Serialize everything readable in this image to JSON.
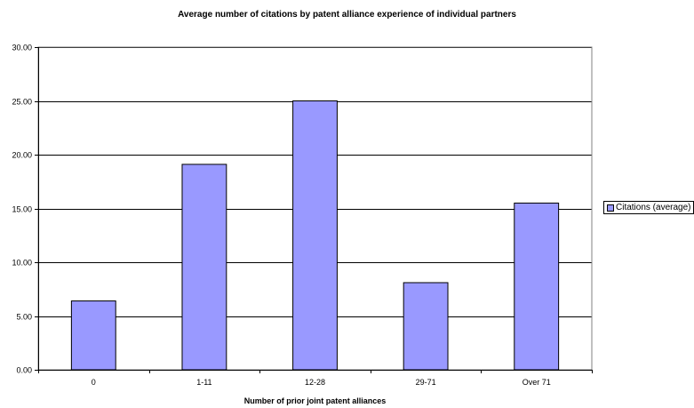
{
  "chart_data": {
    "type": "bar",
    "title": "Average number of citations by patent alliance experience of individual partners",
    "xlabel": "Number of prior joint patent alliances",
    "ylabel": "",
    "categories": [
      "0",
      "1-11",
      "12-28",
      "29-71",
      "Over 71"
    ],
    "series": [
      {
        "name": "Citations (average)",
        "values": [
          6.4,
          19.1,
          25.0,
          8.1,
          15.5
        ]
      }
    ],
    "ylim": [
      0,
      30
    ],
    "yticks": [
      "0.00",
      "5.00",
      "10.00",
      "15.00",
      "20.00",
      "25.00",
      "30.00"
    ],
    "grid": true,
    "legend_position": "right",
    "colors": {
      "bar": "#9999ff",
      "border": "#000000",
      "grid": "#000000"
    }
  }
}
